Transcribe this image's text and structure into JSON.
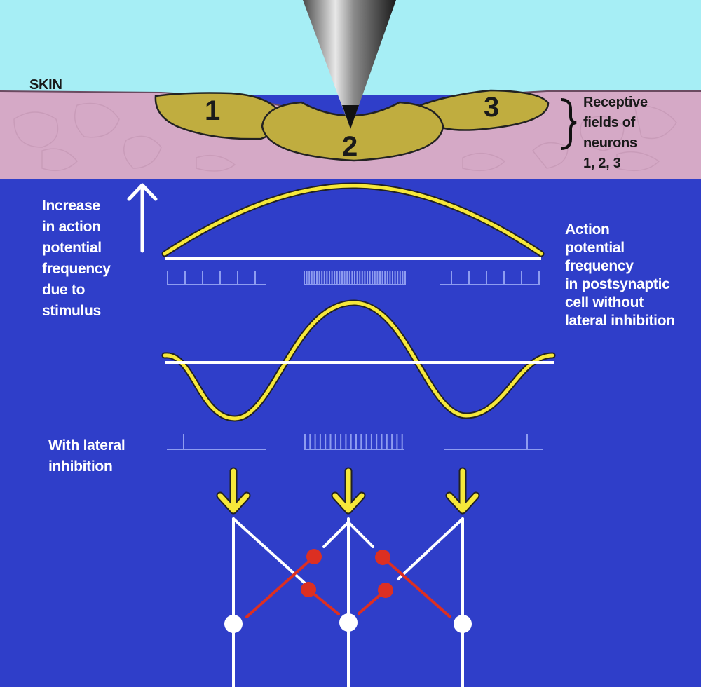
{
  "skin_label": "SKIN",
  "receptive_fields": {
    "numbers": [
      "1",
      "2",
      "3"
    ],
    "caption_lines": [
      "Receptive",
      "fields of",
      "neurons",
      "1, 2, 3"
    ]
  },
  "stimulus_caption_lines": [
    "Increase",
    "in action",
    "potential",
    "frequency",
    "due to",
    "stimulus"
  ],
  "without_inhibition_caption_lines": [
    "Action",
    "potential",
    "frequency",
    "in postsynaptic",
    "cell without",
    "lateral inhibition"
  ],
  "with_inhibition_caption_lines": [
    "With lateral",
    "inhibition"
  ],
  "colors": {
    "sky": "#a6eef5",
    "skin": "#d5a9c6",
    "background": "#2f3ec9",
    "receptive_field": "#c0ad3f",
    "curve": "#f6e83a",
    "synapse": "#dc2f22"
  }
}
